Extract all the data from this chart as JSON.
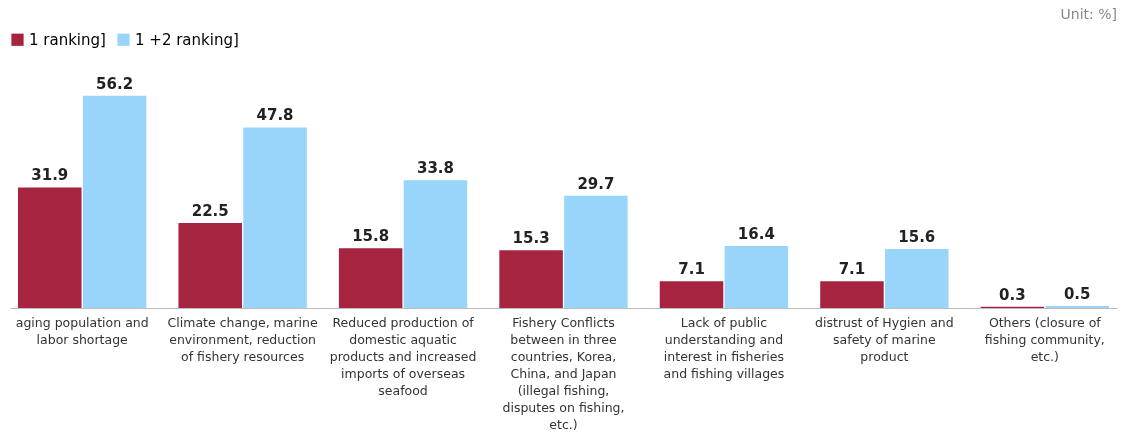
{
  "chart_data": {
    "type": "bar",
    "categories": [
      "aging population and labor shortage",
      "Climate change, marine environment, reduction of fishery resources",
      "Reduced production of domestic aquatic products and increased imports of overseas seafood",
      "Fishery Conflicts between in three countries, Korea, China, and Japan (illegal fishing, disputes on fishing, etc.)",
      "Lack of public understanding and interest in fisheries and fishing villages",
      "distrust of Hygien and safety of marine product",
      "Others (closure of fishing community, etc.)"
    ],
    "series": [
      {
        "name": "1 ranking]",
        "color": "#a6243f",
        "values": [
          31.9,
          22.5,
          15.8,
          15.3,
          7.1,
          7.1,
          0.3
        ]
      },
      {
        "name": "1 +2 ranking]",
        "color": "#99d5fb",
        "values": [
          56.2,
          47.8,
          33.8,
          29.7,
          16.4,
          15.6,
          0.5
        ]
      }
    ],
    "data_labels": true,
    "legend": "top left",
    "annotations": [
      "Unit: %]"
    ]
  }
}
